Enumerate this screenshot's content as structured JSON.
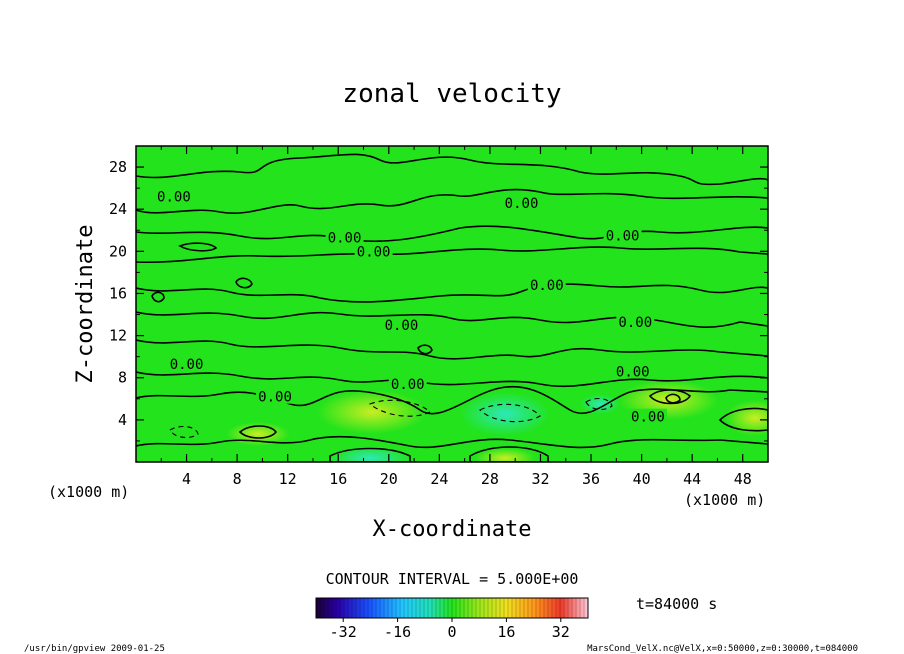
{
  "chart_data": {
    "type": "heatmap",
    "title": "zonal velocity",
    "xlabel": "X-coordinate",
    "ylabel": "Z-coordinate",
    "x_unit_left": "(x1000 m)",
    "x_unit_right": "(x1000 m)",
    "xlim": [
      0,
      50
    ],
    "ylim": [
      0,
      30
    ],
    "x_ticks": [
      "4",
      "8",
      "12",
      "16",
      "20",
      "24",
      "28",
      "32",
      "36",
      "40",
      "44",
      "48"
    ],
    "y_ticks": [
      "4",
      "8",
      "12",
      "16",
      "20",
      "24",
      "28"
    ],
    "x_tick_values": [
      4,
      8,
      12,
      16,
      20,
      24,
      28,
      32,
      36,
      40,
      44,
      48
    ],
    "y_tick_values": [
      4,
      8,
      12,
      16,
      20,
      24,
      28
    ],
    "contour_interval_text": "CONTOUR INTERVAL = 5.000E+00",
    "time_text": "t=84000 s",
    "colorbar": {
      "range": [
        -40,
        40
      ],
      "ticks": [
        "-32",
        "-16",
        "0",
        "16",
        "32"
      ],
      "tick_values": [
        -32,
        -16,
        0,
        16,
        32
      ]
    },
    "contour_labels": [
      {
        "text": "0.00",
        "x": 3,
        "z": 25.2
      },
      {
        "text": "0.00",
        "x": 30.5,
        "z": 24.6
      },
      {
        "text": "0.00",
        "x": 16.5,
        "z": 21.3
      },
      {
        "text": "0.00",
        "x": 18.8,
        "z": 20
      },
      {
        "text": "0.00",
        "x": 38.5,
        "z": 21.5
      },
      {
        "text": "0.00",
        "x": 32.5,
        "z": 16.8
      },
      {
        "text": "0.00",
        "x": 21,
        "z": 13
      },
      {
        "text": "0.00",
        "x": 39.5,
        "z": 13.3
      },
      {
        "text": "0.00",
        "x": 4,
        "z": 9.3
      },
      {
        "text": "0.00",
        "x": 21.5,
        "z": 7.4
      },
      {
        "text": "0.00",
        "x": 39.3,
        "z": 8.6
      },
      {
        "text": "0.00",
        "x": 11,
        "z": 6.2
      },
      {
        "text": "0.00",
        "x": 40.5,
        "z": 4.3
      }
    ],
    "grid": false
  },
  "footer": {
    "left": "/usr/bin/gpview  2009-01-25",
    "right": "MarsCond_VelX.nc@VelX,x=0:50000,z=0:30000,t=084000"
  },
  "colors": {
    "background_field": "#22e31c",
    "contour_line": "#000000"
  }
}
